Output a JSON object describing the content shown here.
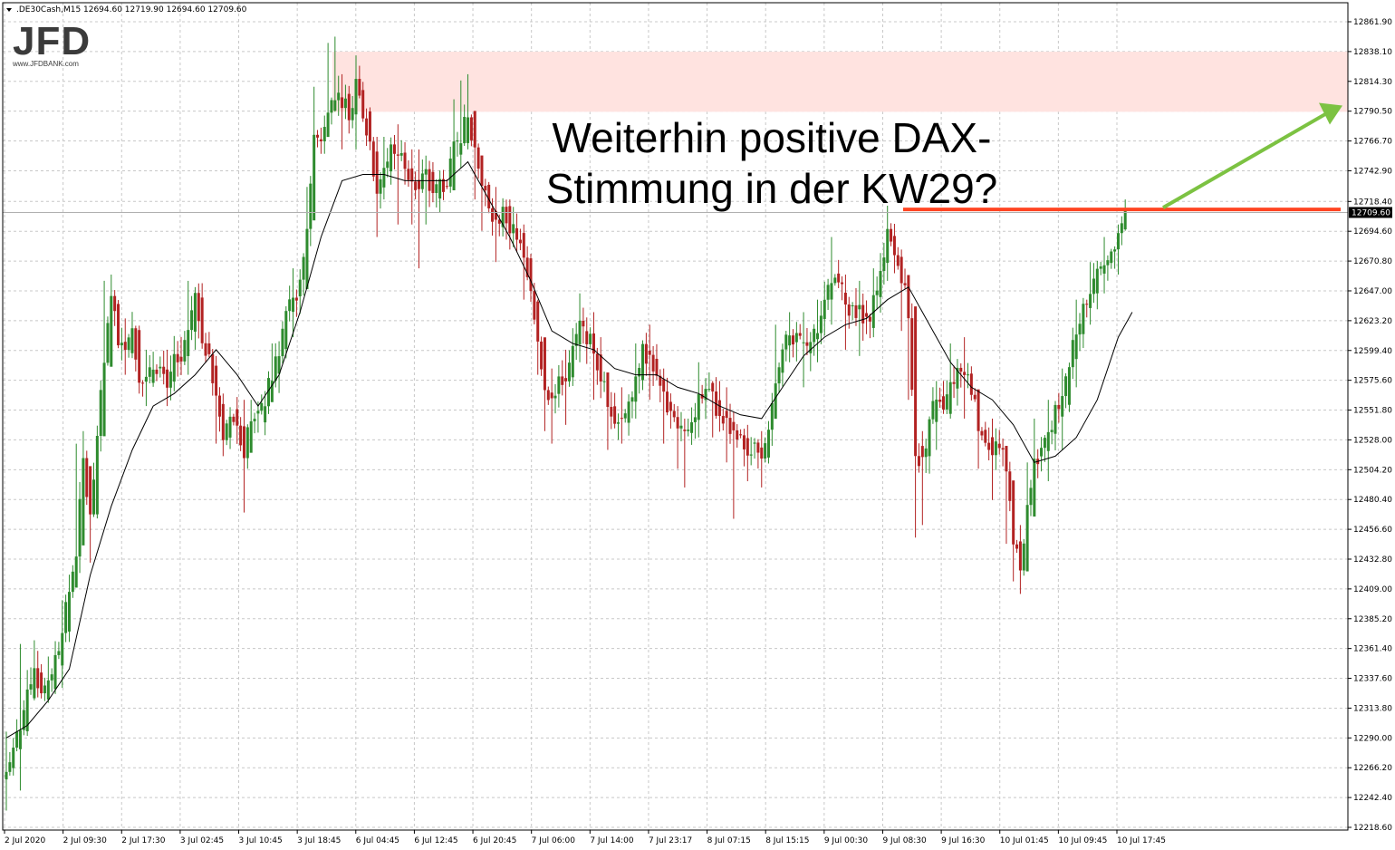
{
  "header": {
    "symbol": ".DE30Cash,M15",
    "ohlc": "12694.60 12719.90 12694.60 12709.60"
  },
  "logo": {
    "mark": "JFD",
    "url": "www.JFDBANK.com"
  },
  "annotation": {
    "line1": "Weiterhin positive DAX-",
    "line2": "Stimmung in der KW29?"
  },
  "current_price_label": "12709.60",
  "colors": {
    "bull": "#2e8b2e",
    "bear": "#b22222",
    "ma": "#000000",
    "zone": "#ffe3e0",
    "resistance": "#ff4422",
    "arrow": "#7cc242",
    "grid": "#c8c8c8",
    "price_tag_bg": "#000000"
  },
  "chart_data": {
    "type": "line",
    "title": "",
    "ylim": [
      12218.6,
      12873.8
    ],
    "y_ticks": [
      "12861.90",
      "12838.10",
      "12814.30",
      "12790.50",
      "12766.70",
      "12742.90",
      "12718.40",
      "12694.60",
      "12670.80",
      "12647.00",
      "12623.20",
      "12599.40",
      "12575.60",
      "12551.80",
      "12528.00",
      "12504.20",
      "12480.40",
      "12456.60",
      "12432.80",
      "12409.00",
      "12385.20",
      "12361.40",
      "12337.60",
      "12313.80",
      "12290.00",
      "12266.20",
      "12242.40",
      "12218.60"
    ],
    "x_ticks": [
      "2 Jul 2020",
      "2 Jul 09:30",
      "2 Jul 17:30",
      "3 Jul 02:45",
      "3 Jul 10:45",
      "3 Jul 18:45",
      "6 Jul 04:45",
      "6 Jul 12:45",
      "6 Jul 20:45",
      "7 Jul 06:00",
      "7 Jul 14:00",
      "7 Jul 23:17",
      "8 Jul 07:15",
      "8 Jul 15:15",
      "9 Jul 00:30",
      "9 Jul 08:30",
      "9 Jul 16:30",
      "10 Jul 01:45",
      "10 Jul 09:45",
      "10 Jul 17:45"
    ],
    "close_path": [
      [
        0,
        12262
      ],
      [
        2,
        12300
      ],
      [
        4,
        12345
      ],
      [
        5,
        12325
      ],
      [
        6,
        12330
      ],
      [
        8,
        12375
      ],
      [
        10,
        12440
      ],
      [
        11,
        12510
      ],
      [
        12,
        12470
      ],
      [
        14,
        12590
      ],
      [
        15,
        12640
      ],
      [
        16,
        12610
      ],
      [
        17,
        12600
      ],
      [
        18,
        12620
      ],
      [
        19,
        12575
      ],
      [
        20,
        12575
      ],
      [
        21,
        12590
      ],
      [
        22,
        12585
      ],
      [
        23,
        12575
      ],
      [
        24,
        12590
      ],
      [
        25,
        12590
      ],
      [
        26,
        12615
      ],
      [
        27,
        12640
      ],
      [
        28,
        12610
      ],
      [
        29,
        12590
      ],
      [
        30,
        12560
      ],
      [
        31,
        12530
      ],
      [
        32,
        12550
      ],
      [
        33,
        12540
      ],
      [
        34,
        12520
      ],
      [
        35,
        12545
      ],
      [
        36,
        12545
      ],
      [
        37,
        12560
      ],
      [
        38,
        12580
      ],
      [
        39,
        12600
      ],
      [
        40,
        12630
      ],
      [
        41,
        12640
      ],
      [
        42,
        12650
      ],
      [
        43,
        12700
      ],
      [
        44,
        12770
      ],
      [
        45,
        12770
      ],
      [
        46,
        12795
      ],
      [
        47,
        12805
      ],
      [
        48,
        12800
      ],
      [
        49,
        12790
      ],
      [
        50,
        12810
      ],
      [
        51,
        12790
      ],
      [
        52,
        12760
      ],
      [
        53,
        12730
      ],
      [
        54,
        12745
      ],
      [
        55,
        12760
      ],
      [
        56,
        12755
      ],
      [
        57,
        12750
      ],
      [
        58,
        12735
      ],
      [
        59,
        12735
      ],
      [
        60,
        12740
      ],
      [
        61,
        12720
      ],
      [
        62,
        12735
      ],
      [
        63,
        12730
      ],
      [
        64,
        12760
      ],
      [
        65,
        12770
      ],
      [
        66,
        12790
      ],
      [
        67,
        12760
      ],
      [
        68,
        12730
      ],
      [
        69,
        12710
      ],
      [
        70,
        12700
      ],
      [
        71,
        12710
      ],
      [
        72,
        12700
      ],
      [
        73,
        12690
      ],
      [
        74,
        12670
      ],
      [
        75,
        12640
      ],
      [
        76,
        12610
      ],
      [
        77,
        12570
      ],
      [
        78,
        12560
      ],
      [
        79,
        12580
      ],
      [
        80,
        12575
      ],
      [
        81,
        12600
      ],
      [
        82,
        12620
      ],
      [
        83,
        12610
      ],
      [
        84,
        12600
      ],
      [
        85,
        12580
      ],
      [
        86,
        12560
      ],
      [
        87,
        12545
      ],
      [
        88,
        12545
      ],
      [
        89,
        12560
      ],
      [
        90,
        12580
      ],
      [
        91,
        12600
      ],
      [
        92,
        12590
      ],
      [
        93,
        12575
      ],
      [
        94,
        12560
      ],
      [
        95,
        12550
      ],
      [
        96,
        12540
      ],
      [
        97,
        12530
      ],
      [
        98,
        12545
      ],
      [
        99,
        12560
      ],
      [
        100,
        12570
      ],
      [
        101,
        12560
      ],
      [
        102,
        12550
      ],
      [
        103,
        12545
      ],
      [
        104,
        12535
      ],
      [
        105,
        12530
      ],
      [
        106,
        12520
      ],
      [
        107,
        12520
      ],
      [
        108,
        12510
      ],
      [
        109,
        12540
      ],
      [
        110,
        12580
      ],
      [
        111,
        12600
      ],
      [
        112,
        12610
      ],
      [
        113,
        12610
      ],
      [
        114,
        12600
      ],
      [
        115,
        12610
      ],
      [
        116,
        12620
      ],
      [
        117,
        12635
      ],
      [
        118,
        12660
      ],
      [
        119,
        12650
      ],
      [
        120,
        12640
      ],
      [
        121,
        12630
      ],
      [
        122,
        12630
      ],
      [
        123,
        12620
      ],
      [
        124,
        12640
      ],
      [
        125,
        12665
      ],
      [
        126,
        12690
      ],
      [
        127,
        12675
      ],
      [
        128,
        12660
      ],
      [
        129,
        12630
      ],
      [
        130,
        12520
      ],
      [
        131,
        12510
      ],
      [
        132,
        12545
      ],
      [
        133,
        12560
      ],
      [
        134,
        12550
      ],
      [
        135,
        12570
      ],
      [
        136,
        12585
      ],
      [
        137,
        12580
      ],
      [
        138,
        12570
      ],
      [
        139,
        12540
      ],
      [
        140,
        12530
      ],
      [
        141,
        12520
      ],
      [
        142,
        12525
      ],
      [
        143,
        12500
      ],
      [
        144,
        12450
      ],
      [
        145,
        12420
      ],
      [
        146,
        12470
      ],
      [
        147,
        12510
      ],
      [
        148,
        12520
      ],
      [
        149,
        12530
      ],
      [
        150,
        12550
      ],
      [
        151,
        12560
      ],
      [
        152,
        12590
      ],
      [
        153,
        12610
      ],
      [
        154,
        12630
      ],
      [
        155,
        12650
      ],
      [
        156,
        12660
      ],
      [
        157,
        12670
      ],
      [
        158,
        12680
      ],
      [
        159,
        12695
      ],
      [
        160,
        12709.6
      ]
    ],
    "candle_high_low": [
      [
        0,
        12232,
        12295
      ],
      [
        2,
        12248,
        12365
      ],
      [
        4,
        12320,
        12368
      ],
      [
        6,
        12318,
        12355
      ],
      [
        8,
        12330,
        12400
      ],
      [
        10,
        12415,
        12525
      ],
      [
        11,
        12480,
        12535
      ],
      [
        12,
        12430,
        12505
      ],
      [
        14,
        12545,
        12655
      ],
      [
        15,
        12590,
        12660
      ],
      [
        17,
        12580,
        12625
      ],
      [
        20,
        12555,
        12600
      ],
      [
        23,
        12555,
        12600
      ],
      [
        26,
        12580,
        12655
      ],
      [
        27,
        12600,
        12650
      ],
      [
        30,
        12525,
        12595
      ],
      [
        31,
        12515,
        12565
      ],
      [
        34,
        12470,
        12560
      ],
      [
        35,
        12520,
        12560
      ],
      [
        38,
        12560,
        12605
      ],
      [
        41,
        12610,
        12665
      ],
      [
        43,
        12650,
        12730
      ],
      [
        44,
        12740,
        12810
      ],
      [
        46,
        12770,
        12845
      ],
      [
        47,
        12790,
        12850
      ],
      [
        48,
        12760,
        12820
      ],
      [
        50,
        12760,
        12835
      ],
      [
        53,
        12690,
        12770
      ],
      [
        54,
        12720,
        12770
      ],
      [
        56,
        12700,
        12780
      ],
      [
        58,
        12700,
        12760
      ],
      [
        59,
        12665,
        12760
      ],
      [
        60,
        12700,
        12755
      ],
      [
        64,
        12730,
        12800
      ],
      [
        65,
        12745,
        12815
      ],
      [
        66,
        12760,
        12820
      ],
      [
        67,
        12720,
        12790
      ],
      [
        68,
        12695,
        12740
      ],
      [
        70,
        12670,
        12730
      ],
      [
        72,
        12680,
        12720
      ],
      [
        74,
        12640,
        12700
      ],
      [
        76,
        12580,
        12640
      ],
      [
        77,
        12535,
        12605
      ],
      [
        78,
        12525,
        12585
      ],
      [
        80,
        12540,
        12600
      ],
      [
        82,
        12590,
        12645
      ],
      [
        84,
        12560,
        12630
      ],
      [
        86,
        12520,
        12580
      ],
      [
        88,
        12525,
        12570
      ],
      [
        90,
        12545,
        12605
      ],
      [
        92,
        12560,
        12620
      ],
      [
        94,
        12525,
        12585
      ],
      [
        96,
        12505,
        12555
      ],
      [
        97,
        12490,
        12545
      ],
      [
        99,
        12530,
        12590
      ],
      [
        101,
        12530,
        12575
      ],
      [
        103,
        12510,
        12570
      ],
      [
        104,
        12465,
        12550
      ],
      [
        106,
        12495,
        12540
      ],
      [
        108,
        12490,
        12535
      ],
      [
        110,
        12550,
        12620
      ],
      [
        112,
        12590,
        12630
      ],
      [
        114,
        12570,
        12630
      ],
      [
        116,
        12590,
        12640
      ],
      [
        118,
        12620,
        12690
      ],
      [
        120,
        12600,
        12660
      ],
      [
        122,
        12595,
        12655
      ],
      [
        124,
        12610,
        12665
      ],
      [
        126,
        12655,
        12715
      ],
      [
        128,
        12615,
        12680
      ],
      [
        129,
        12560,
        12655
      ],
      [
        130,
        12450,
        12570
      ],
      [
        131,
        12460,
        12535
      ],
      [
        133,
        12520,
        12575
      ],
      [
        135,
        12545,
        12605
      ],
      [
        137,
        12545,
        12610
      ],
      [
        139,
        12505,
        12560
      ],
      [
        141,
        12480,
        12545
      ],
      [
        143,
        12445,
        12520
      ],
      [
        144,
        12415,
        12480
      ],
      [
        145,
        12405,
        12460
      ],
      [
        146,
        12440,
        12510
      ],
      [
        147,
        12480,
        12545
      ],
      [
        149,
        12495,
        12560
      ],
      [
        151,
        12520,
        12585
      ],
      [
        153,
        12570,
        12640
      ],
      [
        155,
        12620,
        12670
      ],
      [
        157,
        12645,
        12690
      ],
      [
        159,
        12660,
        12700
      ],
      [
        160,
        12695,
        12720
      ]
    ],
    "moving_average": [
      [
        0,
        12290
      ],
      [
        3,
        12300
      ],
      [
        6,
        12320
      ],
      [
        9,
        12345
      ],
      [
        12,
        12420
      ],
      [
        15,
        12475
      ],
      [
        18,
        12520
      ],
      [
        21,
        12555
      ],
      [
        24,
        12565
      ],
      [
        27,
        12580
      ],
      [
        30,
        12600
      ],
      [
        33,
        12580
      ],
      [
        36,
        12555
      ],
      [
        39,
        12580
      ],
      [
        42,
        12630
      ],
      [
        45,
        12690
      ],
      [
        48,
        12735
      ],
      [
        51,
        12740
      ],
      [
        54,
        12740
      ],
      [
        57,
        12735
      ],
      [
        60,
        12735
      ],
      [
        63,
        12735
      ],
      [
        66,
        12750
      ],
      [
        69,
        12720
      ],
      [
        72,
        12690
      ],
      [
        75,
        12655
      ],
      [
        78,
        12615
      ],
      [
        81,
        12605
      ],
      [
        84,
        12600
      ],
      [
        87,
        12585
      ],
      [
        90,
        12580
      ],
      [
        93,
        12580
      ],
      [
        96,
        12570
      ],
      [
        99,
        12565
      ],
      [
        102,
        12555
      ],
      [
        105,
        12548
      ],
      [
        108,
        12545
      ],
      [
        111,
        12570
      ],
      [
        114,
        12595
      ],
      [
        117,
        12610
      ],
      [
        120,
        12620
      ],
      [
        123,
        12625
      ],
      [
        126,
        12640
      ],
      [
        129,
        12650
      ],
      [
        132,
        12620
      ],
      [
        135,
        12590
      ],
      [
        138,
        12570
      ],
      [
        141,
        12560
      ],
      [
        144,
        12540
      ],
      [
        147,
        12510
      ],
      [
        150,
        12515
      ],
      [
        153,
        12530
      ],
      [
        156,
        12560
      ],
      [
        159,
        12610
      ],
      [
        161,
        12630
      ]
    ],
    "resistance_zone": [
      12790,
      12838
    ],
    "resistance_level": 12712,
    "grid": true
  }
}
